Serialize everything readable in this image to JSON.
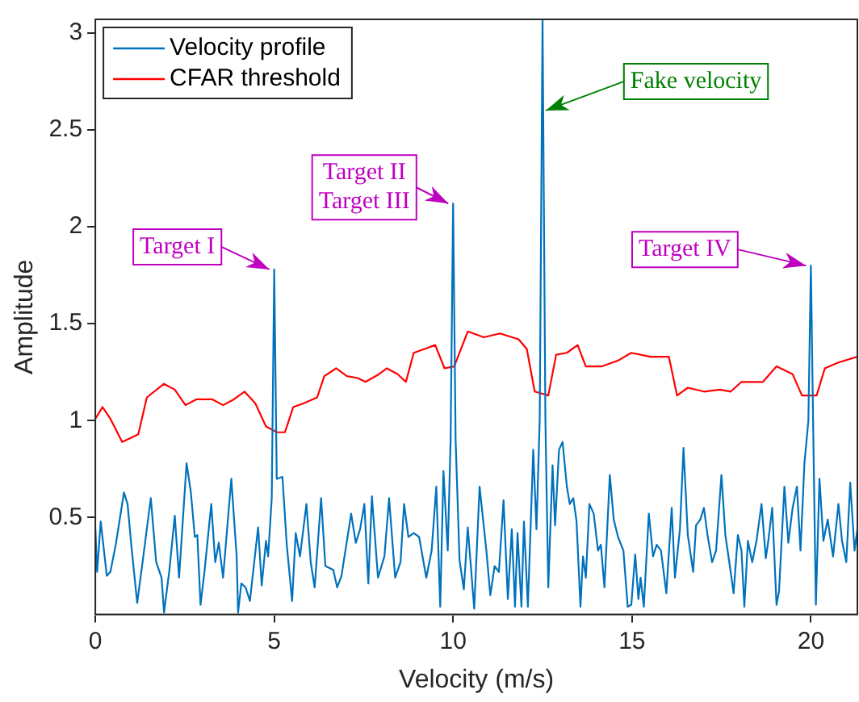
{
  "chart_data": {
    "type": "line",
    "xlabel": "Velocity (m/s)",
    "ylabel": "Amplitude",
    "xlim": [
      0,
      21.3
    ],
    "ylim": [
      0,
      3.07
    ],
    "xticks": [
      0,
      5,
      10,
      15,
      20
    ],
    "yticks": [
      0.5,
      1,
      1.5,
      2,
      2.5,
      3
    ],
    "grid": false,
    "legend": "top left",
    "marker": "none",
    "line_style": "solid",
    "series": [
      {
        "name": "Velocity profile",
        "color": "#0072bd",
        "x": [
          0,
          0.05,
          0.15,
          0.32,
          0.42,
          0.57,
          0.8,
          0.9,
          1.02,
          1.17,
          1.32,
          1.55,
          1.7,
          1.85,
          1.92,
          2.07,
          2.22,
          2.34,
          2.55,
          2.67,
          2.78,
          2.85,
          2.94,
          3.05,
          3.24,
          3.35,
          3.45,
          3.57,
          3.8,
          3.95,
          3.99,
          4.08,
          4.2,
          4.32,
          4.55,
          4.65,
          4.77,
          4.83,
          4.93,
          5,
          5.07,
          5.23,
          5.35,
          5.5,
          5.6,
          5.72,
          5.9,
          6.02,
          6.13,
          6.31,
          6.43,
          6.65,
          6.76,
          6.88,
          7.15,
          7.28,
          7.4,
          7.52,
          7.63,
          7.73,
          7.9,
          8.08,
          8.21,
          8.38,
          8.53,
          8.63,
          8.75,
          8.9,
          9.05,
          9.25,
          9.4,
          9.53,
          9.64,
          9.73,
          9.85,
          9.93,
          10,
          10.07,
          10.18,
          10.3,
          10.41,
          10.59,
          10.74,
          10.93,
          11.04,
          11.16,
          11.28,
          11.41,
          11.53,
          11.64,
          11.73,
          11.8,
          11.91,
          11.98,
          12.09,
          12.24,
          12.33,
          12.42,
          12.5,
          12.58,
          12.66,
          12.78,
          12.85,
          12.96,
          13.06,
          13.18,
          13.26,
          13.36,
          13.45,
          13.56,
          13.63,
          13.71,
          13.81,
          13.93,
          14.05,
          14.13,
          14.23,
          14.38,
          14.49,
          14.61,
          14.76,
          14.88,
          14.98,
          15.09,
          15.18,
          15.24,
          15.33,
          15.47,
          15.59,
          15.69,
          15.81,
          15.96,
          16.11,
          16.2,
          16.34,
          16.44,
          16.56,
          16.71,
          16.79,
          16.91,
          17.01,
          17.11,
          17.24,
          17.35,
          17.5,
          17.61,
          17.72,
          17.84,
          17.96,
          18.06,
          18.14,
          18.24,
          18.36,
          18.48,
          18.62,
          18.74,
          18.81,
          18.92,
          19.04,
          19.11,
          19.26,
          19.37,
          19.49,
          19.61,
          19.71,
          19.82,
          19.93,
          20,
          20.07,
          20.14,
          20.24,
          20.35,
          20.47,
          20.62,
          20.77,
          20.87,
          20.99,
          21.1,
          21.22,
          21.3
        ],
        "values": [
          0.44,
          0.22,
          0.48,
          0.2,
          0.22,
          0.36,
          0.63,
          0.57,
          0.33,
          0.06,
          0.27,
          0.6,
          0.27,
          0.19,
          0.01,
          0.23,
          0.51,
          0.19,
          0.78,
          0.63,
          0.4,
          0.41,
          0.05,
          0.22,
          0.57,
          0.27,
          0.37,
          0.19,
          0.7,
          0.3,
          0.01,
          0.16,
          0.14,
          0.07,
          0.45,
          0.15,
          0.38,
          0.3,
          0.6,
          1.78,
          0.7,
          0.71,
          0.36,
          0.07,
          0.42,
          0.3,
          0.57,
          0.27,
          0.14,
          0.6,
          0.25,
          0.23,
          0.14,
          0.2,
          0.52,
          0.37,
          0.44,
          0.57,
          0.16,
          0.61,
          0.19,
          0.3,
          0.6,
          0.19,
          0.27,
          0.57,
          0.4,
          0.42,
          0.4,
          0.19,
          0.33,
          0.66,
          0.04,
          0.74,
          0.33,
          0.9,
          2.12,
          0.9,
          0.28,
          0.13,
          0.45,
          0.03,
          0.66,
          0.33,
          0.1,
          0.25,
          0.22,
          0.59,
          0.08,
          0.44,
          0.04,
          0.42,
          0.04,
          0.48,
          0.04,
          0.85,
          0.44,
          1,
          3.07,
          1,
          0.14,
          0.77,
          0.46,
          0.85,
          0.89,
          0.66,
          0.57,
          0.6,
          0.48,
          0.04,
          0.3,
          0.19,
          0.57,
          0.52,
          0.33,
          0.36,
          0.14,
          0.72,
          0.49,
          0.4,
          0.33,
          0.04,
          0.05,
          0.31,
          0.08,
          0.19,
          0.04,
          0.52,
          0.3,
          0.36,
          0.33,
          0.11,
          0.55,
          0.19,
          0.44,
          0.86,
          0.41,
          0.22,
          0.46,
          0.49,
          0.55,
          0.41,
          0.27,
          0.33,
          0.72,
          0.41,
          0.27,
          0.11,
          0.41,
          0.33,
          0.04,
          0.38,
          0.27,
          0.38,
          0.57,
          0.29,
          0.38,
          0.55,
          0.05,
          0.12,
          0.66,
          0.37,
          0.55,
          0.66,
          0.33,
          0.78,
          1,
          1.8,
          0.9,
          0.05,
          0.7,
          0.38,
          0.49,
          0.3,
          0.57,
          0.38,
          0.27,
          0.68,
          0.33,
          0.44
        ]
      },
      {
        "name": "CFAR threshold",
        "color": "#ff0000",
        "x": [
          0,
          0.2,
          0.42,
          0.75,
          1.2,
          1.44,
          1.92,
          2.22,
          2.52,
          2.82,
          3.27,
          3.57,
          3.87,
          4.17,
          4.47,
          4.77,
          5.08,
          5.3,
          5.53,
          5.83,
          6.2,
          6.4,
          6.73,
          7.03,
          7.33,
          7.55,
          7.93,
          8.15,
          8.45,
          8.68,
          8.9,
          9.2,
          9.5,
          9.76,
          10.03,
          10.41,
          10.86,
          11.31,
          11.83,
          12.06,
          12.28,
          12.66,
          12.88,
          13.18,
          13.48,
          13.71,
          14.16,
          14.61,
          14.98,
          15.51,
          16.03,
          16.26,
          16.56,
          17.01,
          17.46,
          17.76,
          18.06,
          18.66,
          19.04,
          19.49,
          19.75,
          20.16,
          20.39,
          20.77,
          21.3
        ],
        "values": [
          1.01,
          1.07,
          1.01,
          0.89,
          0.93,
          1.12,
          1.19,
          1.16,
          1.08,
          1.11,
          1.11,
          1.08,
          1.11,
          1.15,
          1.09,
          0.97,
          0.94,
          0.94,
          1.07,
          1.09,
          1.12,
          1.23,
          1.27,
          1.23,
          1.22,
          1.2,
          1.24,
          1.27,
          1.24,
          1.2,
          1.35,
          1.37,
          1.39,
          1.27,
          1.28,
          1.46,
          1.43,
          1.45,
          1.42,
          1.37,
          1.15,
          1.13,
          1.34,
          1.35,
          1.39,
          1.28,
          1.28,
          1.31,
          1.35,
          1.33,
          1.33,
          1.13,
          1.17,
          1.15,
          1.16,
          1.15,
          1.2,
          1.2,
          1.28,
          1.24,
          1.13,
          1.13,
          1.27,
          1.3,
          1.33
        ]
      }
    ],
    "annotations": [
      {
        "text": "Target I",
        "x": 5,
        "y": 1.78
      },
      {
        "text": "Target II\nTarget III",
        "x": 10,
        "y": 2.12
      },
      {
        "text": "Fake velocity",
        "x": 12.5,
        "y": 2.6
      },
      {
        "text": "Target IV",
        "x": 20,
        "y": 1.8
      }
    ]
  }
}
